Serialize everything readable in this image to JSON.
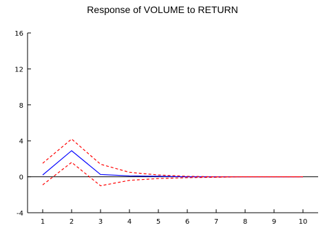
{
  "chart_data": {
    "type": "line",
    "title": "Response of VOLUME to RETURN",
    "xlabel": "",
    "ylabel": "",
    "x": [
      1,
      2,
      3,
      4,
      5,
      6,
      7,
      8,
      9,
      10
    ],
    "xlim": [
      1,
      10
    ],
    "ylim": [
      -4,
      16
    ],
    "y_ticks": [
      -4,
      0,
      4,
      8,
      12,
      16
    ],
    "x_ticks": [
      1,
      2,
      3,
      4,
      5,
      6,
      7,
      8,
      9,
      10
    ],
    "grid": false,
    "legend": "none",
    "zero_line": true,
    "series": [
      {
        "role": "response",
        "color": "#0000ff",
        "dash": "solid",
        "values": [
          0.2,
          2.9,
          0.25,
          0.1,
          0.05,
          0.0,
          0.0,
          0.0,
          0.0,
          0.0
        ]
      },
      {
        "role": "upper-band",
        "color": "#ff0000",
        "dash": "dashed",
        "values": [
          1.5,
          4.2,
          1.4,
          0.5,
          0.2,
          0.05,
          0.0,
          0.0,
          0.0,
          0.0
        ]
      },
      {
        "role": "lower-band",
        "color": "#ff0000",
        "dash": "dashed",
        "values": [
          -0.9,
          1.6,
          -1.0,
          -0.4,
          -0.2,
          -0.1,
          -0.05,
          0.0,
          0.0,
          0.0
        ]
      }
    ]
  }
}
